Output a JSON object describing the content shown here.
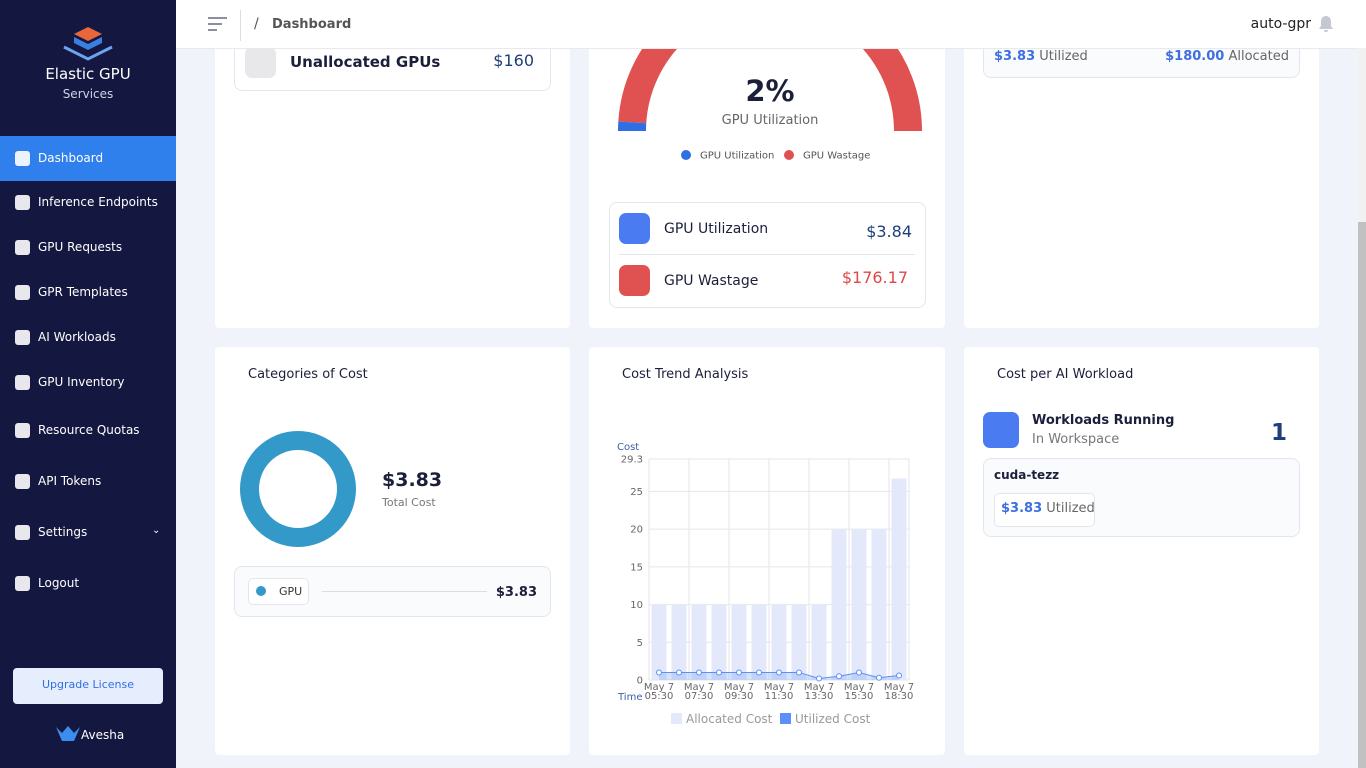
{
  "sidebar": {
    "brand": "Elastic GPU",
    "sub": "Services",
    "nav": [
      "Dashboard",
      "Inference Endpoints",
      "GPU Requests",
      "GPR Templates",
      "AI Workloads",
      "GPU Inventory",
      "Resource Quotas",
      "API Tokens",
      "Settings",
      "Logout"
    ],
    "upgrade": "Upgrade License",
    "footer": "Avesha"
  },
  "header": {
    "separator": "/",
    "breadcrumb": "Dashboard",
    "user": "auto-gpr"
  },
  "unallocated": {
    "label": "Unallocated GPUs",
    "value": "$160"
  },
  "utilization_rows": [
    {
      "label": "GPU Utilization",
      "value": "$3.84"
    },
    {
      "label": "GPU Wastage",
      "value": "$176.17"
    }
  ],
  "allocation": {
    "utilized": "$3.83",
    "utilized_label": "Utilized",
    "allocated": "$180.00",
    "allocated_label": "Allocated"
  },
  "workloads": {
    "title": "Cost per AI Workload",
    "label": "Workloads Running",
    "sub": "In Workspace",
    "count": "1",
    "item": "cuda-tezz",
    "item_value": "$3.83",
    "item_label": "Utilized"
  },
  "chart_data": [
    {
      "type": "gauge",
      "value": 2,
      "value_label": "2%",
      "label": "GPU Utilization",
      "series": [
        {
          "name": "GPU Utilization",
          "color": "#2f6fe4"
        },
        {
          "name": "GPU Wastage",
          "color": "#e05252"
        }
      ]
    },
    {
      "type": "pie",
      "title": "Categories of Cost",
      "categories": [
        "GPU"
      ],
      "values": [
        3.83
      ],
      "value_labels": [
        "$3.83"
      ],
      "colors": [
        "#3399c8"
      ],
      "center_value": "$3.83",
      "center_label": "Total Cost"
    },
    {
      "type": "bar",
      "title": "Cost Trend Analysis",
      "y_label": "Cost",
      "x_label": "Time",
      "categories": [
        "May 7 05:30",
        null,
        "May 7 07:30",
        null,
        "May 7 09:30",
        null,
        "May 7 11:30",
        null,
        "May 7 13:30",
        null,
        "May 7 15:30",
        null,
        "May 7 18:30"
      ],
      "series": [
        {
          "name": "Allocated Cost",
          "color": "#e3e9fb",
          "values": [
            10,
            10,
            10,
            10,
            10,
            10,
            10,
            10,
            10,
            20,
            20,
            20,
            26.7
          ]
        },
        {
          "name": "Utilized Cost",
          "color": "#5b8ff9",
          "values": [
            1,
            1,
            1,
            1,
            1,
            1,
            1,
            1,
            0.2,
            0.5,
            1,
            0.3,
            0.6
          ]
        }
      ],
      "ylim": [
        0,
        29.3
      ],
      "yticks": [
        0,
        5,
        10,
        15,
        20,
        25,
        29.3
      ],
      "grid": true
    }
  ]
}
